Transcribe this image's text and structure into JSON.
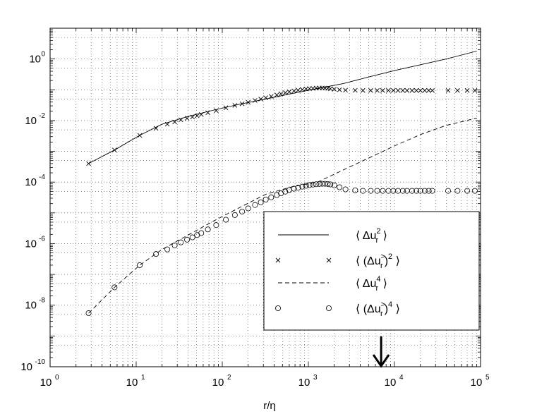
{
  "chart_data": {
    "type": "line",
    "title": "",
    "xlabel": "r/η",
    "ylabel": "",
    "xscale": "log",
    "yscale": "log",
    "xlim": [
      1,
      100000
    ],
    "ylim": [
      1e-10,
      10
    ],
    "grid": true,
    "legend_placement": "center-right",
    "x_ticks": [
      {
        "value": 1,
        "base": "10",
        "exp": "0"
      },
      {
        "value": 10,
        "base": "10",
        "exp": "1"
      },
      {
        "value": 100,
        "base": "10",
        "exp": "2"
      },
      {
        "value": 1000,
        "base": "10",
        "exp": "3"
      },
      {
        "value": 10000,
        "base": "10",
        "exp": "4"
      },
      {
        "value": 100000,
        "base": "10",
        "exp": "5"
      }
    ],
    "y_ticks": [
      {
        "value": 1e-10,
        "base": "10",
        "exp": "-10"
      },
      {
        "value": 1e-08,
        "base": "10",
        "exp": "-8"
      },
      {
        "value": 1e-06,
        "base": "10",
        "exp": "-6"
      },
      {
        "value": 0.0001,
        "base": "10",
        "exp": "-4"
      },
      {
        "value": 0.01,
        "base": "10",
        "exp": "-2"
      },
      {
        "value": 1,
        "base": "10",
        "exp": "0"
      }
    ],
    "series": [
      {
        "name": "⟨ Δu_r^2 ⟩",
        "style": "solid",
        "x": [
          2.8,
          5.6,
          11,
          20,
          40,
          80,
          160,
          320,
          640,
          1280,
          2560,
          5000,
          10000,
          20000,
          40000,
          90000
        ],
        "y": [
          0.0004,
          0.0011,
          0.0033,
          0.0076,
          0.0136,
          0.022,
          0.034,
          0.05,
          0.075,
          0.11,
          0.16,
          0.26,
          0.42,
          0.65,
          1.0,
          1.8
        ]
      },
      {
        "name": "⟨ (Δu_r^>)^2 ⟩",
        "style": "x-marker",
        "x": [
          2.8,
          5.6,
          11,
          17,
          23,
          28,
          33,
          39,
          45,
          51,
          57,
          68,
          85,
          110,
          140,
          170,
          200,
          240,
          280,
          320,
          370,
          430,
          480,
          540,
          600,
          680,
          760,
          850,
          940,
          1030,
          1130,
          1230,
          1340,
          1450,
          1560,
          1680,
          1800,
          2000,
          2300,
          2700,
          3500,
          4300,
          5300,
          6300,
          7300,
          8500,
          9700,
          11000,
          12500,
          14000,
          16000,
          18000,
          20000,
          22500,
          25000,
          27500,
          42000,
          54000,
          70000,
          86000
        ],
        "y": [
          0.0004,
          0.0011,
          0.0033,
          0.0056,
          0.0076,
          0.009,
          0.0105,
          0.0118,
          0.013,
          0.0143,
          0.0157,
          0.018,
          0.021,
          0.026,
          0.031,
          0.035,
          0.039,
          0.045,
          0.05,
          0.055,
          0.061,
          0.068,
          0.074,
          0.08,
          0.086,
          0.092,
          0.097,
          0.102,
          0.106,
          0.109,
          0.111,
          0.113,
          0.114,
          0.114,
          0.113,
          0.111,
          0.108,
          0.104,
          0.1,
          0.097,
          0.096,
          0.095,
          0.095,
          0.095,
          0.095,
          0.095,
          0.095,
          0.095,
          0.095,
          0.095,
          0.095,
          0.095,
          0.095,
          0.095,
          0.095,
          0.095,
          0.095,
          0.095,
          0.095,
          0.095
        ]
      },
      {
        "name": "⟨ Δu_r^4 ⟩",
        "style": "dashed",
        "x": [
          2.8,
          5.6,
          11,
          20,
          40,
          80,
          160,
          320,
          640,
          1280,
          2560,
          5000,
          10000,
          20000,
          40000,
          90000
        ],
        "y": [
          5.5e-09,
          3.8e-08,
          2e-07,
          6.5e-07,
          1.9e-06,
          5.5e-06,
          1.5e-05,
          4e-05,
          7e-05,
          0.0001,
          0.00025,
          0.0006,
          0.0015,
          0.0035,
          0.007,
          0.012
        ]
      },
      {
        "name": "⟨ (Δu_r^>)^4 ⟩",
        "style": "o-marker",
        "x": [
          2.8,
          5.6,
          11,
          17,
          23,
          28,
          33,
          39,
          45,
          51,
          57,
          68,
          85,
          110,
          140,
          170,
          200,
          240,
          280,
          320,
          370,
          430,
          480,
          540,
          600,
          680,
          760,
          850,
          940,
          1030,
          1130,
          1230,
          1340,
          1450,
          1560,
          1680,
          1800,
          2000,
          2300,
          2700,
          3500,
          4300,
          5300,
          6300,
          7300,
          8500,
          9700,
          11000,
          12500,
          14000,
          16000,
          18000,
          20000,
          22500,
          25000,
          27500,
          42000,
          54000,
          70000,
          86000
        ],
        "y": [
          5.5e-09,
          3.8e-08,
          2e-07,
          4.6e-07,
          6.5e-07,
          8.8e-07,
          1.1e-06,
          1.35e-06,
          1.6e-06,
          1.9e-06,
          2.2e-06,
          2.9e-06,
          4e-06,
          6e-06,
          8.5e-06,
          1.1e-05,
          1.4e-05,
          1.8e-05,
          2.2e-05,
          2.7e-05,
          3.2e-05,
          3.8e-05,
          4.3e-05,
          4.9e-05,
          5.5e-05,
          6.1e-05,
          6.6e-05,
          7.1e-05,
          7.6e-05,
          8e-05,
          8.3e-05,
          8.5e-05,
          8.7e-05,
          8.8e-05,
          8.8e-05,
          8.7e-05,
          8.4e-05,
          7.9e-05,
          6.8e-05,
          5.8e-05,
          5.4e-05,
          5.2e-05,
          5.2e-05,
          5.2e-05,
          5.2e-05,
          5.2e-05,
          5.2e-05,
          5.2e-05,
          5.2e-05,
          5.2e-05,
          5.2e-05,
          5.2e-05,
          5.2e-05,
          5.2e-05,
          5.2e-05,
          5.2e-05,
          5.2e-05,
          5.2e-05,
          5.2e-05,
          5.2e-05
        ]
      }
    ],
    "legend": [
      {
        "style": "solid",
        "prefix": "⟨ Δu",
        "sub": "r",
        "sup": "2",
        "suffix": " ⟩",
        "sup2": ""
      },
      {
        "style": "x-marker",
        "prefix": "⟨ (Δu",
        "sub": "r",
        "sup": ">",
        "suffix": ")",
        "sup2": "2",
        "tail": " ⟩"
      },
      {
        "style": "dashed",
        "prefix": "⟨ Δu",
        "sub": "r",
        "sup": "4",
        "suffix": " ⟩",
        "sup2": ""
      },
      {
        "style": "o-marker",
        "prefix": "⟨ (Δu",
        "sub": "r",
        "sup": ">",
        "suffix": ")",
        "sup2": "4",
        "tail": " ⟩"
      }
    ],
    "annotation": {
      "type": "arrow-down",
      "x": 7000
    }
  }
}
